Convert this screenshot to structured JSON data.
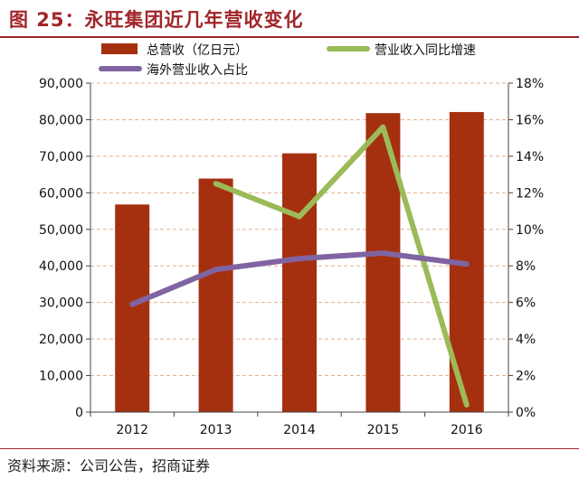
{
  "header": {
    "title": "图 25：永旺集团近几年营收变化"
  },
  "footer": {
    "source": "资料来源：公司公告，招商证券"
  },
  "colors": {
    "bar": "#a5300f",
    "growth_line": "#9bbb59",
    "overseas_line": "#8064a2",
    "brand": "#a0262a",
    "grid": "#e3b08f"
  },
  "chart_data": {
    "type": "bar",
    "categories": [
      "2012",
      "2013",
      "2014",
      "2015",
      "2016"
    ],
    "series": [
      {
        "name": "总营收（亿日元）",
        "kind": "bar",
        "axis": "left",
        "values": [
          56800,
          63900,
          70800,
          81800,
          82100
        ]
      },
      {
        "name": "营业收入同比增速",
        "kind": "line",
        "axis": "right",
        "values": [
          null,
          12.5,
          10.7,
          15.6,
          0.4
        ]
      },
      {
        "name": "海外营业收入占比",
        "kind": "line",
        "axis": "right",
        "values": [
          5.9,
          7.8,
          8.4,
          8.7,
          8.1
        ]
      }
    ],
    "y_left": {
      "lim": [
        0,
        90000
      ],
      "ticks": [
        "0",
        "10,000",
        "20,000",
        "30,000",
        "40,000",
        "50,000",
        "60,000",
        "70,000",
        "80,000",
        "90,000"
      ]
    },
    "y_right": {
      "lim": [
        0,
        18
      ],
      "ticks": [
        "0%",
        "2%",
        "4%",
        "6%",
        "8%",
        "10%",
        "12%",
        "14%",
        "16%",
        "18%"
      ]
    },
    "grid": true,
    "legend": "top"
  }
}
